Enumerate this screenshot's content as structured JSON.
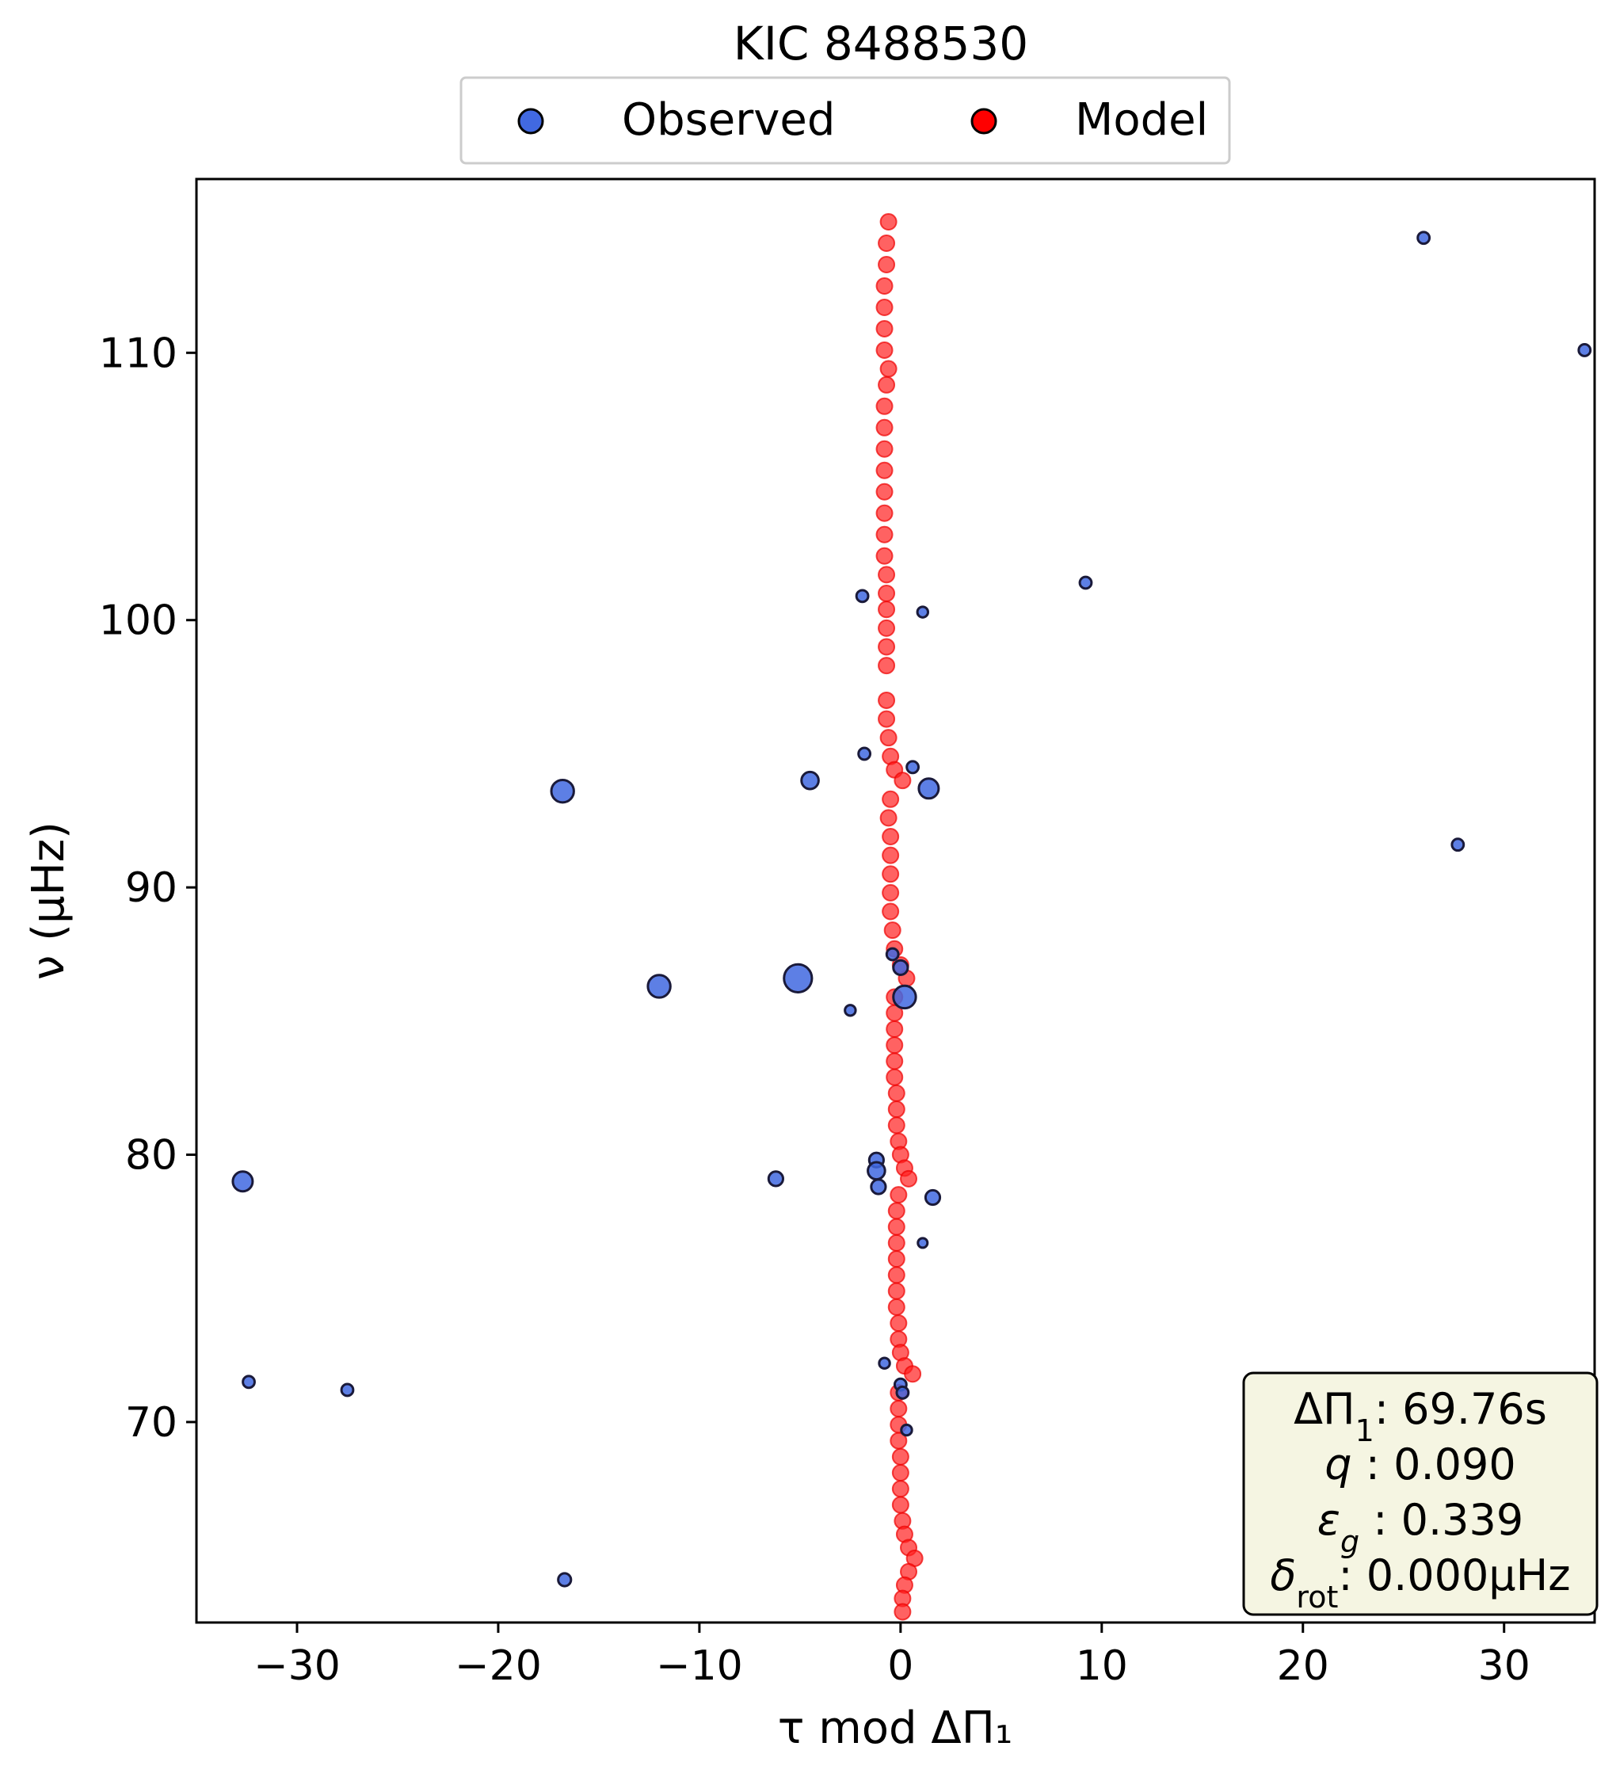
{
  "chart_data": {
    "type": "scatter",
    "title": "KIC 8488530",
    "xlabel": "τ mod ΔΠ₁",
    "ylabel": "ν (μHz)",
    "xlim": [
      -35,
      34.5
    ],
    "ylim": [
      62.5,
      116.5
    ],
    "xticks": [
      -30,
      -20,
      -10,
      0,
      10,
      20,
      30
    ],
    "xtick_labels": [
      "−30",
      "−20",
      "−10",
      "0",
      "10",
      "20",
      "30"
    ],
    "yticks": [
      70,
      80,
      90,
      100,
      110
    ],
    "ytick_labels": [
      "70",
      "80",
      "90",
      "100",
      "110"
    ],
    "grid": false,
    "legend": {
      "placement": "top-center-outside",
      "entries": [
        {
          "name": "Observed",
          "color": "#4169e1"
        },
        {
          "name": "Model",
          "color": "#ff0000"
        }
      ]
    },
    "info_box": {
      "placement": "bottom-right",
      "lines": [
        {
          "label": "ΔΠ",
          "sub": "1",
          "value": ": 69.76s"
        },
        {
          "label": "q",
          "sub": "",
          "value": " :  0.090"
        },
        {
          "label": "ε",
          "sub": "g",
          "value": " : 0.339"
        },
        {
          "label": "δ",
          "sub": "rot",
          "value": ": 0.000μHz"
        }
      ]
    },
    "series": [
      {
        "name": "Observed",
        "color": "#4169e1",
        "edge": "#1a1a3a",
        "points": [
          {
            "x": 26.0,
            "y": 114.3,
            "s": 1
          },
          {
            "x": 34.0,
            "y": 110.1,
            "s": 1
          },
          {
            "x": 9.2,
            "y": 101.4,
            "s": 1
          },
          {
            "x": -1.9,
            "y": 100.9,
            "s": 1
          },
          {
            "x": 1.1,
            "y": 100.3,
            "s": 0.8
          },
          {
            "x": -1.8,
            "y": 95.0,
            "s": 1
          },
          {
            "x": 0.6,
            "y": 94.5,
            "s": 1
          },
          {
            "x": -4.5,
            "y": 94.0,
            "s": 2
          },
          {
            "x": 1.4,
            "y": 93.7,
            "s": 2.5
          },
          {
            "x": -16.8,
            "y": 93.6,
            "s": 3
          },
          {
            "x": 27.7,
            "y": 91.6,
            "s": 1
          },
          {
            "x": -0.4,
            "y": 87.5,
            "s": 1
          },
          {
            "x": 0.0,
            "y": 87.0,
            "s": 1.5
          },
          {
            "x": -5.1,
            "y": 86.6,
            "s": 4
          },
          {
            "x": -12.0,
            "y": 86.3,
            "s": 3
          },
          {
            "x": 0.2,
            "y": 85.9,
            "s": 3
          },
          {
            "x": -2.5,
            "y": 85.4,
            "s": 0.8
          },
          {
            "x": -1.2,
            "y": 79.8,
            "s": 1.5
          },
          {
            "x": -1.2,
            "y": 79.4,
            "s": 2
          },
          {
            "x": -32.7,
            "y": 79.0,
            "s": 2.5
          },
          {
            "x": -6.2,
            "y": 79.1,
            "s": 1.5
          },
          {
            "x": -1.1,
            "y": 78.8,
            "s": 1.5
          },
          {
            "x": 1.6,
            "y": 78.4,
            "s": 1.5
          },
          {
            "x": 1.1,
            "y": 76.7,
            "s": 0.6
          },
          {
            "x": -0.8,
            "y": 72.2,
            "s": 0.8
          },
          {
            "x": -32.4,
            "y": 71.5,
            "s": 1
          },
          {
            "x": -27.5,
            "y": 71.2,
            "s": 1
          },
          {
            "x": 0.0,
            "y": 71.4,
            "s": 1
          },
          {
            "x": 0.1,
            "y": 71.1,
            "s": 1
          },
          {
            "x": 0.3,
            "y": 69.7,
            "s": 0.8
          },
          {
            "x": -16.7,
            "y": 64.1,
            "s": 1.2
          }
        ]
      },
      {
        "name": "Model",
        "color": "#ff2020",
        "points": [
          {
            "x": -0.6,
            "y": 114.9
          },
          {
            "x": -0.7,
            "y": 114.1
          },
          {
            "x": -0.7,
            "y": 113.3
          },
          {
            "x": -0.8,
            "y": 112.5
          },
          {
            "x": -0.8,
            "y": 111.7
          },
          {
            "x": -0.8,
            "y": 110.9
          },
          {
            "x": -0.8,
            "y": 110.1
          },
          {
            "x": -0.6,
            "y": 109.4
          },
          {
            "x": -0.7,
            "y": 108.8
          },
          {
            "x": -0.8,
            "y": 108.0
          },
          {
            "x": -0.8,
            "y": 107.2
          },
          {
            "x": -0.8,
            "y": 106.4
          },
          {
            "x": -0.8,
            "y": 105.6
          },
          {
            "x": -0.8,
            "y": 104.8
          },
          {
            "x": -0.8,
            "y": 104.0
          },
          {
            "x": -0.8,
            "y": 103.2
          },
          {
            "x": -0.8,
            "y": 102.4
          },
          {
            "x": -0.7,
            "y": 101.7
          },
          {
            "x": -0.7,
            "y": 101.0
          },
          {
            "x": -0.7,
            "y": 100.4
          },
          {
            "x": -0.7,
            "y": 99.7
          },
          {
            "x": -0.7,
            "y": 99.0
          },
          {
            "x": -0.7,
            "y": 98.3
          },
          {
            "x": -0.7,
            "y": 97.0
          },
          {
            "x": -0.7,
            "y": 96.3
          },
          {
            "x": -0.6,
            "y": 95.6
          },
          {
            "x": -0.5,
            "y": 94.9
          },
          {
            "x": -0.3,
            "y": 94.4
          },
          {
            "x": 0.1,
            "y": 94.0
          },
          {
            "x": -0.5,
            "y": 93.3
          },
          {
            "x": -0.6,
            "y": 92.6
          },
          {
            "x": -0.5,
            "y": 91.9
          },
          {
            "x": -0.5,
            "y": 91.2
          },
          {
            "x": -0.5,
            "y": 90.5
          },
          {
            "x": -0.5,
            "y": 89.8
          },
          {
            "x": -0.5,
            "y": 89.1
          },
          {
            "x": -0.4,
            "y": 88.4
          },
          {
            "x": -0.3,
            "y": 87.7
          },
          {
            "x": 0.0,
            "y": 87.1
          },
          {
            "x": 0.3,
            "y": 86.6
          },
          {
            "x": -0.3,
            "y": 85.9
          },
          {
            "x": -0.3,
            "y": 85.3
          },
          {
            "x": -0.3,
            "y": 84.7
          },
          {
            "x": -0.3,
            "y": 84.1
          },
          {
            "x": -0.3,
            "y": 83.5
          },
          {
            "x": -0.3,
            "y": 82.9
          },
          {
            "x": -0.2,
            "y": 82.3
          },
          {
            "x": -0.2,
            "y": 81.7
          },
          {
            "x": -0.2,
            "y": 81.1
          },
          {
            "x": -0.1,
            "y": 80.5
          },
          {
            "x": 0.0,
            "y": 80.0
          },
          {
            "x": 0.2,
            "y": 79.5
          },
          {
            "x": 0.4,
            "y": 79.1
          },
          {
            "x": -0.1,
            "y": 78.5
          },
          {
            "x": -0.2,
            "y": 77.9
          },
          {
            "x": -0.2,
            "y": 77.3
          },
          {
            "x": -0.2,
            "y": 76.7
          },
          {
            "x": -0.2,
            "y": 76.1
          },
          {
            "x": -0.2,
            "y": 75.5
          },
          {
            "x": -0.2,
            "y": 74.9
          },
          {
            "x": -0.2,
            "y": 74.3
          },
          {
            "x": -0.1,
            "y": 73.7
          },
          {
            "x": -0.1,
            "y": 73.1
          },
          {
            "x": 0.0,
            "y": 72.6
          },
          {
            "x": 0.2,
            "y": 72.1
          },
          {
            "x": 0.6,
            "y": 71.8
          },
          {
            "x": -0.1,
            "y": 71.1
          },
          {
            "x": -0.1,
            "y": 70.5
          },
          {
            "x": -0.1,
            "y": 69.9
          },
          {
            "x": -0.1,
            "y": 69.3
          },
          {
            "x": 0.0,
            "y": 68.7
          },
          {
            "x": 0.0,
            "y": 68.1
          },
          {
            "x": 0.0,
            "y": 67.5
          },
          {
            "x": 0.0,
            "y": 66.9
          },
          {
            "x": 0.1,
            "y": 66.3
          },
          {
            "x": 0.2,
            "y": 65.8
          },
          {
            "x": 0.4,
            "y": 65.3
          },
          {
            "x": 0.7,
            "y": 64.9
          },
          {
            "x": 0.4,
            "y": 64.4
          },
          {
            "x": 0.2,
            "y": 63.9
          },
          {
            "x": 0.1,
            "y": 63.4
          },
          {
            "x": 0.1,
            "y": 62.9
          }
        ]
      }
    ]
  }
}
